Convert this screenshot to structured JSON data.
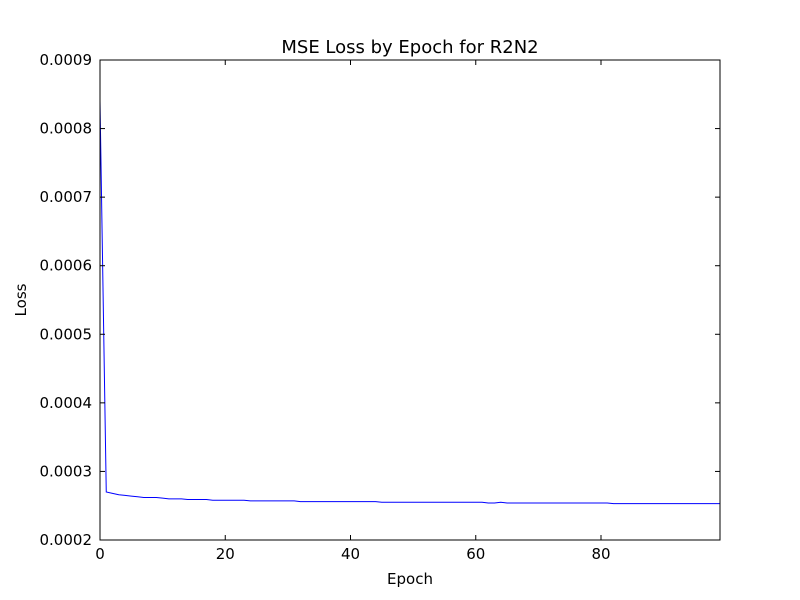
{
  "chart_data": {
    "type": "line",
    "title": "MSE Loss by Epoch for R2N2",
    "xlabel": "Epoch",
    "ylabel": "Loss",
    "xlim": [
      0,
      99
    ],
    "ylim": [
      0.0002,
      0.0009
    ],
    "x_ticks": [
      0,
      20,
      40,
      60,
      80
    ],
    "x_tick_labels": [
      "0",
      "20",
      "40",
      "60",
      "80"
    ],
    "y_ticks": [
      0.0002,
      0.0003,
      0.0004,
      0.0005,
      0.0006,
      0.0007,
      0.0008,
      0.0009
    ],
    "y_tick_labels": [
      "0.0002",
      "0.0003",
      "0.0004",
      "0.0005",
      "0.0006",
      "0.0007",
      "0.0008",
      "0.0009"
    ],
    "grid": false,
    "series": [
      {
        "color": "#0000ff",
        "x": [
          0,
          1,
          2,
          3,
          4,
          5,
          6,
          7,
          8,
          9,
          10,
          11,
          12,
          13,
          14,
          15,
          16,
          17,
          18,
          19,
          20,
          21,
          22,
          23,
          24,
          25,
          26,
          27,
          28,
          29,
          30,
          31,
          32,
          33,
          34,
          35,
          36,
          37,
          38,
          39,
          40,
          41,
          42,
          43,
          44,
          45,
          46,
          47,
          48,
          49,
          50,
          51,
          52,
          53,
          54,
          55,
          56,
          57,
          58,
          59,
          60,
          61,
          62,
          63,
          64,
          65,
          66,
          67,
          68,
          69,
          70,
          71,
          72,
          73,
          74,
          75,
          76,
          77,
          78,
          79,
          80,
          81,
          82,
          83,
          84,
          85,
          86,
          87,
          88,
          89,
          90,
          91,
          92,
          93,
          94,
          95,
          96,
          97,
          98,
          99
        ],
        "y": [
          0.00084,
          0.00027,
          0.000268,
          0.000266,
          0.000265,
          0.000264,
          0.000263,
          0.000262,
          0.000262,
          0.000262,
          0.000261,
          0.00026,
          0.00026,
          0.00026,
          0.000259,
          0.000259,
          0.000259,
          0.000259,
          0.000258,
          0.000258,
          0.000258,
          0.000258,
          0.000258,
          0.000258,
          0.000257,
          0.000257,
          0.000257,
          0.000257,
          0.000257,
          0.000257,
          0.000257,
          0.000257,
          0.000256,
          0.000256,
          0.000256,
          0.000256,
          0.000256,
          0.000256,
          0.000256,
          0.000256,
          0.000256,
          0.000256,
          0.000256,
          0.000256,
          0.000256,
          0.000255,
          0.000255,
          0.000255,
          0.000255,
          0.000255,
          0.000255,
          0.000255,
          0.000255,
          0.000255,
          0.000255,
          0.000255,
          0.000255,
          0.000255,
          0.000255,
          0.000255,
          0.000255,
          0.000255,
          0.000254,
          0.000254,
          0.000255,
          0.000254,
          0.000254,
          0.000254,
          0.000254,
          0.000254,
          0.000254,
          0.000254,
          0.000254,
          0.000254,
          0.000254,
          0.000254,
          0.000254,
          0.000254,
          0.000254,
          0.000254,
          0.000254,
          0.000254,
          0.000253,
          0.000253,
          0.000253,
          0.000253,
          0.000253,
          0.000253,
          0.000253,
          0.000253,
          0.000253,
          0.000253,
          0.000253,
          0.000253,
          0.000253,
          0.000253,
          0.000253,
          0.000253,
          0.000253,
          0.000253
        ]
      }
    ]
  }
}
